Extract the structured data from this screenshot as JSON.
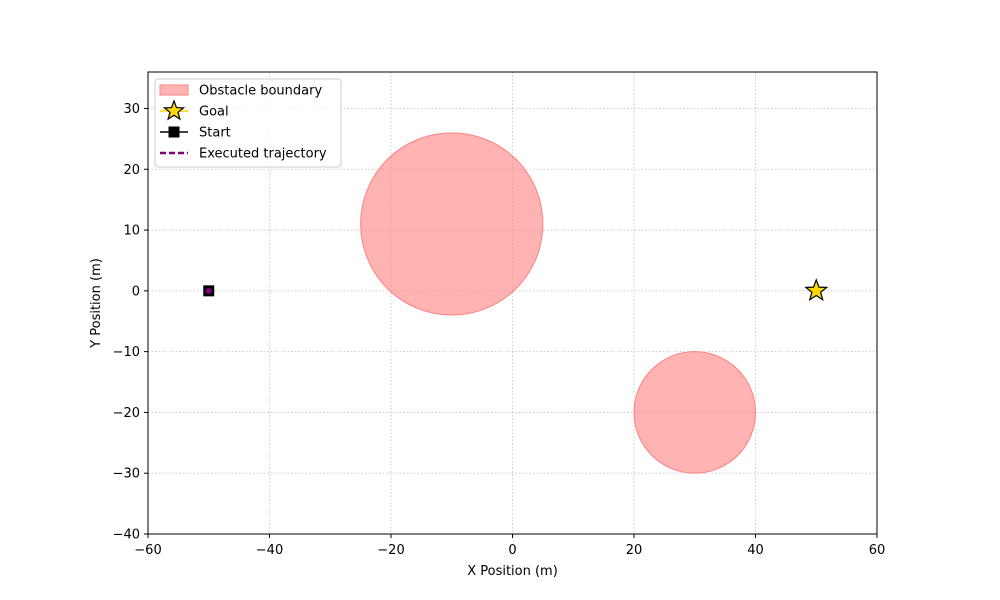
{
  "chart_data": {
    "type": "scatter",
    "title": "",
    "xlabel": "X Position (m)",
    "ylabel": "Y Position (m)",
    "xlim": [
      -60,
      60
    ],
    "ylim": [
      -40,
      36
    ],
    "xticks": [
      -60,
      -40,
      -20,
      0,
      20,
      40,
      60
    ],
    "yticks": [
      -40,
      -30,
      -20,
      -10,
      0,
      10,
      20,
      30
    ],
    "xtick_labels": [
      "−60",
      "−40",
      "−20",
      "0",
      "20",
      "40",
      "60"
    ],
    "ytick_labels": [
      "−40",
      "−30",
      "−20",
      "−10",
      "0",
      "10",
      "20",
      "30"
    ],
    "grid": true,
    "legend_position": "top-left",
    "obstacles": [
      {
        "cx": -10,
        "cy": 11,
        "r": 15
      },
      {
        "cx": 30,
        "cy": -20,
        "r": 10
      }
    ],
    "series": [
      {
        "name": "Obstacle boundary",
        "kind": "circle-patch",
        "color": "#ff8080"
      },
      {
        "name": "Goal",
        "kind": "marker-star",
        "color": "#ffd700",
        "x": [
          50
        ],
        "y": [
          0
        ]
      },
      {
        "name": "Start",
        "kind": "marker-square",
        "color": "#000000",
        "x": [
          -50
        ],
        "y": [
          0
        ]
      },
      {
        "name": "Executed trajectory",
        "kind": "dashed-line",
        "color": "#800080",
        "x": [
          -50
        ],
        "y": [
          0
        ]
      }
    ]
  }
}
